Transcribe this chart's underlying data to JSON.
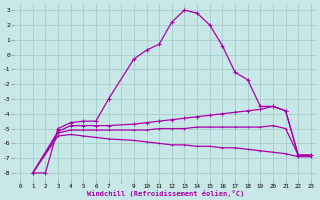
{
  "xlabel": "Windchill (Refroidissement éolien,°C)",
  "bg_color": "#c8e8e8",
  "grid_color": "#a0c8c8",
  "line_color": "#aa00aa",
  "xlim": [
    -0.5,
    23.5
  ],
  "ylim": [
    -8.5,
    3.5
  ],
  "xtick_labels": [
    "0",
    "1",
    "2",
    "3",
    "4",
    "5",
    "6",
    "7",
    "",
    "9",
    "10",
    "11",
    "12",
    "13",
    "14",
    "15",
    "16",
    "17",
    "18",
    "19",
    "20",
    "21",
    "22",
    "23"
  ],
  "xtick_positions": [
    0,
    1,
    2,
    3,
    4,
    5,
    6,
    7,
    8,
    9,
    10,
    11,
    12,
    13,
    14,
    15,
    16,
    17,
    18,
    19,
    20,
    21,
    22,
    23
  ],
  "yticks": [
    -8,
    -7,
    -6,
    -5,
    -4,
    -3,
    -2,
    -1,
    0,
    1,
    2,
    3
  ],
  "line1_x": [
    1,
    2,
    3,
    4,
    5,
    6,
    7,
    9,
    10,
    11,
    12,
    13,
    14,
    15,
    16,
    17,
    18,
    19,
    20,
    21,
    22,
    23
  ],
  "line1_y": [
    -8,
    -8,
    -5,
    -4.6,
    -4.5,
    -4.5,
    -3,
    -0.3,
    0.3,
    0.7,
    2.2,
    3.0,
    2.8,
    2.0,
    0.6,
    -1.2,
    -1.7,
    -3.5,
    -3.5,
    -3.8,
    -6.8,
    -6.8
  ],
  "line2_x": [
    1,
    3,
    4,
    5,
    6,
    7,
    9,
    10,
    11,
    12,
    13,
    14,
    15,
    16,
    17,
    18,
    19,
    20,
    21,
    22,
    23
  ],
  "line2_y": [
    -8,
    -5.2,
    -4.8,
    -4.8,
    -4.8,
    -4.8,
    -4.7,
    -4.6,
    -4.5,
    -4.4,
    -4.3,
    -4.2,
    -4.1,
    -4.0,
    -3.9,
    -3.8,
    -3.7,
    -3.5,
    -3.8,
    -6.8,
    -6.8
  ],
  "line3_x": [
    1,
    3,
    4,
    5,
    6,
    7,
    9,
    10,
    11,
    12,
    13,
    14,
    15,
    16,
    17,
    18,
    19,
    20,
    21,
    22,
    23
  ],
  "line3_y": [
    -8,
    -5.3,
    -5.1,
    -5.1,
    -5.1,
    -5.1,
    -5.1,
    -5.1,
    -5.0,
    -5.0,
    -5.0,
    -4.9,
    -4.9,
    -4.9,
    -4.9,
    -4.9,
    -4.9,
    -4.8,
    -5.0,
    -6.8,
    -6.8
  ],
  "line4_x": [
    1,
    3,
    4,
    5,
    6,
    7,
    9,
    10,
    11,
    12,
    13,
    14,
    15,
    16,
    17,
    18,
    19,
    20,
    21,
    22,
    23
  ],
  "line4_y": [
    -8,
    -5.5,
    -5.4,
    -5.5,
    -5.6,
    -5.7,
    -5.8,
    -5.9,
    -6.0,
    -6.1,
    -6.1,
    -6.2,
    -6.2,
    -6.3,
    -6.3,
    -6.4,
    -6.5,
    -6.6,
    -6.7,
    -6.9,
    -6.9
  ]
}
